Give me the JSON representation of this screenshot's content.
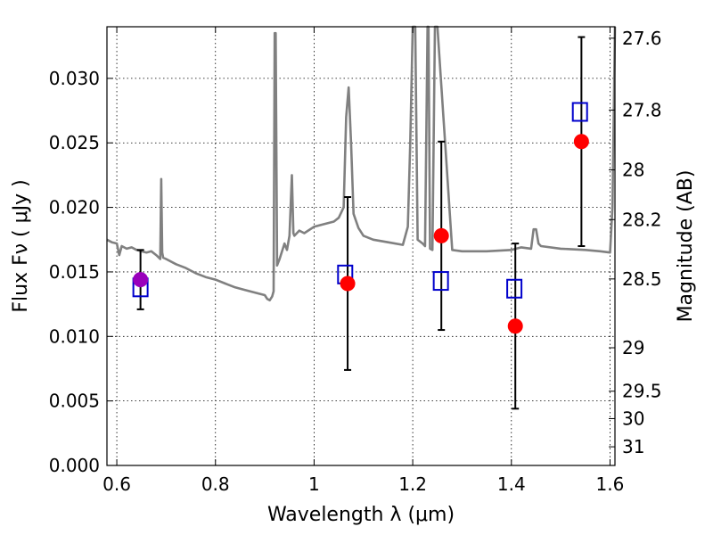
{
  "chart_data": {
    "type": "scatter",
    "title": "",
    "xlabel": "Wavelength  λ (μm)",
    "ylabel": "Flux  Fν  ( μJy )",
    "ylabel_right": "Magnitude (AB)",
    "xlim": [
      0.58,
      1.61
    ],
    "ylim": [
      0.0,
      0.034
    ],
    "x_ticks": [
      0.6,
      0.8,
      1.0,
      1.2,
      1.4,
      1.6
    ],
    "x_tick_labels": [
      "0.6",
      "0.8",
      "1",
      "1.2",
      "1.4",
      "1.6"
    ],
    "y_ticks": [
      0.0,
      0.005,
      0.01,
      0.015,
      0.02,
      0.025,
      0.03
    ],
    "y_tick_labels": [
      "0.000",
      "0.005",
      "0.010",
      "0.015",
      "0.020",
      "0.025",
      "0.030"
    ],
    "right_ticks": [
      27.6,
      27.8,
      28,
      28.2,
      28.5,
      29,
      29.5,
      30,
      31
    ],
    "right_tick_labels": [
      "27.6",
      "27.8",
      "28",
      "28.2",
      "28.5",
      "29",
      "29.5",
      "30",
      "31"
    ],
    "grid": true,
    "colors": {
      "template": "#808080",
      "observed": "#ff0000",
      "observed_first": "#9900bb",
      "model": "#0000cc",
      "errorbar": "#000000"
    },
    "template_spectrum": {
      "x": [
        0.58,
        0.59,
        0.6,
        0.605,
        0.61,
        0.62,
        0.63,
        0.64,
        0.65,
        0.66,
        0.67,
        0.68,
        0.688,
        0.69,
        0.692,
        0.694,
        0.7,
        0.72,
        0.74,
        0.76,
        0.78,
        0.8,
        0.82,
        0.84,
        0.86,
        0.88,
        0.9,
        0.905,
        0.91,
        0.915,
        0.918,
        0.92,
        0.922,
        0.925,
        0.93,
        0.94,
        0.945,
        0.95,
        0.955,
        0.958,
        0.96,
        0.97,
        0.98,
        1.0,
        1.02,
        1.04,
        1.05,
        1.06,
        1.065,
        1.07,
        1.075,
        1.08,
        1.09,
        1.1,
        1.12,
        1.15,
        1.18,
        1.19,
        1.195,
        1.2,
        1.205,
        1.21,
        1.22,
        1.225,
        1.23,
        1.232,
        1.235,
        1.24,
        1.245,
        1.25,
        1.28,
        1.3,
        1.35,
        1.4,
        1.42,
        1.44,
        1.445,
        1.45,
        1.455,
        1.46,
        1.5,
        1.55,
        1.58,
        1.6,
        1.605,
        1.61
      ],
      "y": [
        0.0175,
        0.0173,
        0.0172,
        0.0163,
        0.017,
        0.0168,
        0.0169,
        0.0167,
        0.0166,
        0.0165,
        0.0166,
        0.0163,
        0.016,
        0.0222,
        0.0165,
        0.0161,
        0.016,
        0.0156,
        0.0153,
        0.0149,
        0.0146,
        0.0144,
        0.0141,
        0.0138,
        0.0136,
        0.0134,
        0.0132,
        0.0129,
        0.0128,
        0.0131,
        0.0135,
        0.0335,
        0.0335,
        0.0155,
        0.016,
        0.0172,
        0.0167,
        0.0178,
        0.0225,
        0.018,
        0.0178,
        0.0182,
        0.018,
        0.0185,
        0.0187,
        0.0189,
        0.0192,
        0.02,
        0.027,
        0.0293,
        0.025,
        0.0195,
        0.0184,
        0.0178,
        0.0175,
        0.0173,
        0.0171,
        0.0185,
        0.025,
        0.0345,
        0.0345,
        0.0175,
        0.0172,
        0.017,
        0.0345,
        0.0345,
        0.0168,
        0.0167,
        0.0345,
        0.0345,
        0.0167,
        0.0166,
        0.0166,
        0.0167,
        0.0169,
        0.0168,
        0.0183,
        0.0183,
        0.0172,
        0.017,
        0.0168,
        0.0167,
        0.0166,
        0.0165,
        0.02,
        0.034
      ]
    },
    "series": [
      {
        "name": "",
        "marker": "circle",
        "x": [
          0.648,
          1.068,
          1.258,
          1.408,
          1.542
        ],
        "y": [
          0.0144,
          0.0141,
          0.0178,
          0.0108,
          0.0251
        ],
        "yerr": [
          0.0023,
          0.0067,
          0.0073,
          0.0064,
          0.0081
        ]
      },
      {
        "name": "",
        "marker": "open-square",
        "x": [
          0.648,
          1.063,
          1.257,
          1.406,
          1.539
        ],
        "y": [
          0.0138,
          0.0148,
          0.0143,
          0.0137,
          0.0274
        ]
      }
    ]
  }
}
